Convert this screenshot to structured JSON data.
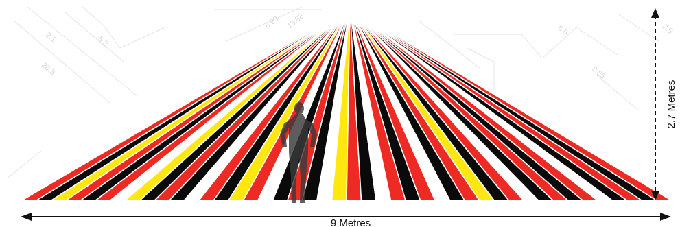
{
  "diagram": {
    "width_label": "9 Metres",
    "height_label": "2.7 Metres",
    "stripes": [
      "red",
      "black",
      "yellow",
      "red",
      "black",
      "red",
      "white",
      "yellow",
      "black",
      "red",
      "black",
      "white",
      "red",
      "black",
      "yellow",
      "red",
      "white",
      "black",
      "red",
      "black",
      "white",
      "yellow",
      "red",
      "black",
      "white",
      "red",
      "black",
      "red",
      "white",
      "black",
      "red",
      "yellow",
      "black",
      "red",
      "white",
      "black",
      "red",
      "black",
      "red",
      "white",
      "black",
      "red",
      "black",
      "red"
    ],
    "colors": {
      "red": "#ee2a24",
      "black": "#0a0a0a",
      "yellow": "#ffe70f",
      "white": "#ffffff",
      "separator": "#ffffff",
      "figure": "#3a3a3a"
    }
  },
  "background_sketch": {
    "labels": [
      "2.1",
      "5.3",
      "20.3",
      "6.93",
      "13.88",
      "6.0",
      "0.85",
      "2.5"
    ]
  }
}
